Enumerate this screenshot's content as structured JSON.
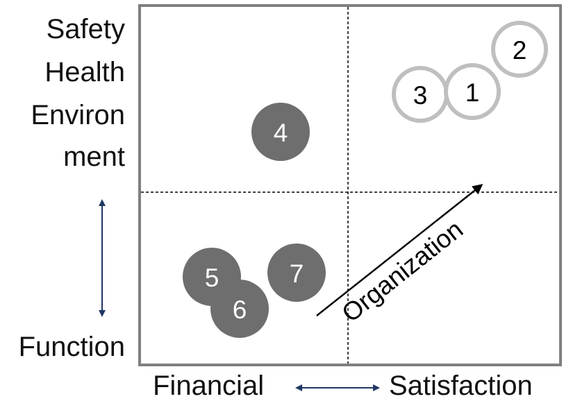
{
  "y_axis": {
    "top_lines": [
      "Safety",
      "Health",
      "Environ",
      "ment"
    ],
    "bottom": "Function"
  },
  "x_axis": {
    "left": "Financial",
    "right": "Satisfaction"
  },
  "arrow_label": "Organization",
  "items": [
    {
      "label": "1",
      "style": "outline"
    },
    {
      "label": "2",
      "style": "outline"
    },
    {
      "label": "3",
      "style": "outline"
    },
    {
      "label": "4",
      "style": "filled"
    },
    {
      "label": "5",
      "style": "filled"
    },
    {
      "label": "6",
      "style": "filled"
    },
    {
      "label": "7",
      "style": "filled"
    }
  ],
  "colors": {
    "frame": "#7f7f7f",
    "filled_circle": "#6e6e6e",
    "outline_circle": "#bfbfbf",
    "axis_arrow": "#1f3864",
    "diagonal_arrow": "#000000"
  }
}
